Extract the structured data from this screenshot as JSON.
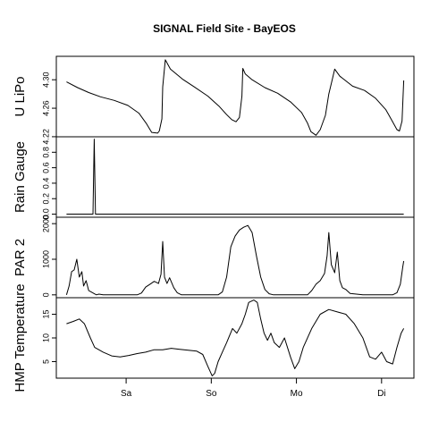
{
  "chart_data": {
    "title": "SIGNAL Field Site - BayEOS",
    "x_axis": {
      "range": [
        0,
        4.2
      ],
      "ticks": [
        {
          "at": 0.82,
          "label": "Sa"
        },
        {
          "at": 1.82,
          "label": "So"
        },
        {
          "at": 2.82,
          "label": "Mo"
        },
        {
          "at": 3.82,
          "label": "Di"
        }
      ]
    },
    "panels": [
      {
        "type": "line",
        "ylabel": "U LiPo",
        "ylim": [
          0.2199,
          0.3329
        ],
        "ylim_display": [
          4.2199,
          4.3329
        ],
        "y_ticks": [
          4.22,
          4.26,
          4.3
        ],
        "y_tick_labels": [
          "4.22",
          "4.26",
          "4.30"
        ],
        "y_offset": 4.0,
        "series": [
          {
            "x": [
              0.12,
              0.25,
              0.38,
              0.52,
              0.68,
              0.84,
              0.97,
              1.06,
              1.12,
              1.19,
              1.21,
              1.24,
              1.25,
              1.28,
              1.34,
              1.48,
              1.62,
              1.78,
              1.91,
              2.0,
              2.06,
              2.11,
              2.15,
              2.18,
              2.19,
              2.22,
              2.3,
              2.45,
              2.6,
              2.75,
              2.88,
              2.95,
              2.99,
              3.05,
              3.1,
              3.16,
              3.2,
              3.24,
              3.27,
              3.33,
              3.48,
              3.62,
              3.75,
              3.87,
              3.95,
              4.0,
              4.03,
              4.06,
              4.08
            ],
            "y": [
              0.297,
              0.289,
              0.282,
              0.276,
              0.271,
              0.264,
              0.253,
              0.238,
              0.226,
              0.225,
              0.228,
              0.245,
              0.29,
              0.328,
              0.315,
              0.301,
              0.29,
              0.277,
              0.263,
              0.251,
              0.244,
              0.241,
              0.247,
              0.277,
              0.316,
              0.308,
              0.3,
              0.289,
              0.281,
              0.269,
              0.254,
              0.239,
              0.227,
              0.222,
              0.23,
              0.25,
              0.28,
              0.3,
              0.315,
              0.305,
              0.291,
              0.285,
              0.274,
              0.258,
              0.241,
              0.23,
              0.228,
              0.242,
              0.299
            ]
          }
        ]
      },
      {
        "type": "line",
        "ylabel": "Rain Gauge",
        "ylim": [
          -0.04,
          1.0
        ],
        "y_ticks": [
          0.0,
          0.2,
          0.4,
          0.6,
          0.8
        ],
        "y_tick_labels": [
          "0.0",
          "0.2",
          "0.4",
          "0.6",
          "0.8"
        ],
        "series": [
          {
            "x": [
              0.12,
              0.43,
              0.445,
              0.46,
              0.475,
              4.08
            ],
            "y": [
              0.0,
              0.0,
              0.97,
              0.0,
              0.0,
              0.0
            ]
          }
        ]
      },
      {
        "type": "line",
        "ylabel": "PAR 2",
        "ylim": [
          -80,
          2180
        ],
        "y_ticks": [
          0,
          1000,
          2000
        ],
        "y_tick_labels": [
          "0",
          "1000",
          "2000"
        ],
        "series": [
          {
            "x": [
              0.12,
              0.15,
              0.18,
              0.21,
              0.24,
              0.27,
              0.3,
              0.32,
              0.35,
              0.38,
              0.41,
              0.44,
              0.47,
              0.5,
              0.55,
              0.7,
              0.95,
              1.0,
              1.05,
              1.1,
              1.15,
              1.2,
              1.23,
              1.25,
              1.27,
              1.3,
              1.33,
              1.38,
              1.42,
              1.47,
              1.6,
              1.75,
              1.9,
              1.95,
              2.0,
              2.05,
              2.1,
              2.15,
              2.2,
              2.25,
              2.3,
              2.35,
              2.4,
              2.45,
              2.5,
              2.55,
              2.6,
              2.65,
              2.8,
              2.95,
              3.0,
              3.05,
              3.1,
              3.15,
              3.18,
              3.2,
              3.23,
              3.27,
              3.3,
              3.33,
              3.36,
              3.4,
              3.45,
              3.6,
              3.8,
              3.95,
              4.0,
              4.04,
              4.07,
              4.08
            ],
            "y": [
              0,
              250,
              650,
              700,
              1000,
              500,
              650,
              250,
              400,
              120,
              80,
              40,
              0,
              20,
              0,
              0,
              0,
              50,
              220,
              300,
              380,
              320,
              580,
              1500,
              500,
              320,
              480,
              200,
              60,
              0,
              0,
              0,
              0,
              80,
              500,
              1350,
              1650,
              1820,
              1900,
              1950,
              1750,
              1100,
              500,
              150,
              30,
              0,
              0,
              0,
              0,
              0,
              120,
              300,
              400,
              600,
              1100,
              1750,
              850,
              620,
              1200,
              400,
              200,
              150,
              40,
              0,
              0,
              0,
              60,
              300,
              800,
              950
            ]
          }
        ]
      },
      {
        "type": "line",
        "ylabel": "HMP Temperature",
        "ylim": [
          1.5,
          18.5
        ],
        "y_ticks": [
          5,
          10,
          15
        ],
        "y_tick_labels": [
          "5",
          "10",
          "15"
        ],
        "series": [
          {
            "x": [
              0.12,
              0.2,
              0.27,
              0.33,
              0.4,
              0.45,
              0.55,
              0.65,
              0.75,
              0.85,
              0.95,
              1.05,
              1.15,
              1.25,
              1.35,
              1.45,
              1.55,
              1.65,
              1.72,
              1.78,
              1.83,
              1.86,
              1.9,
              1.95,
              2.0,
              2.07,
              2.12,
              2.18,
              2.22,
              2.26,
              2.32,
              2.36,
              2.4,
              2.44,
              2.48,
              2.52,
              2.56,
              2.62,
              2.68,
              2.75,
              2.8,
              2.85,
              2.9,
              3.0,
              3.1,
              3.2,
              3.3,
              3.4,
              3.5,
              3.6,
              3.68,
              3.75,
              3.82,
              3.88,
              3.95,
              4.0,
              4.05,
              4.08
            ],
            "y": [
              13,
              13.5,
              14,
              13,
              10,
              8,
              7,
              6.2,
              6,
              6.3,
              6.7,
              7,
              7.5,
              7.5,
              7.8,
              7.6,
              7.4,
              7.2,
              6.5,
              4,
              2,
              2.5,
              5,
              7,
              9,
              12,
              11,
              13,
              15,
              17.5,
              18,
              17.5,
              14,
              11,
              9.5,
              11,
              9,
              8,
              10,
              6,
              3.5,
              5,
              8,
              12,
              15,
              16,
              15.5,
              15,
              13,
              10,
              6,
              5.5,
              7,
              5,
              4.5,
              8,
              11,
              12
            ]
          }
        ]
      }
    ]
  }
}
